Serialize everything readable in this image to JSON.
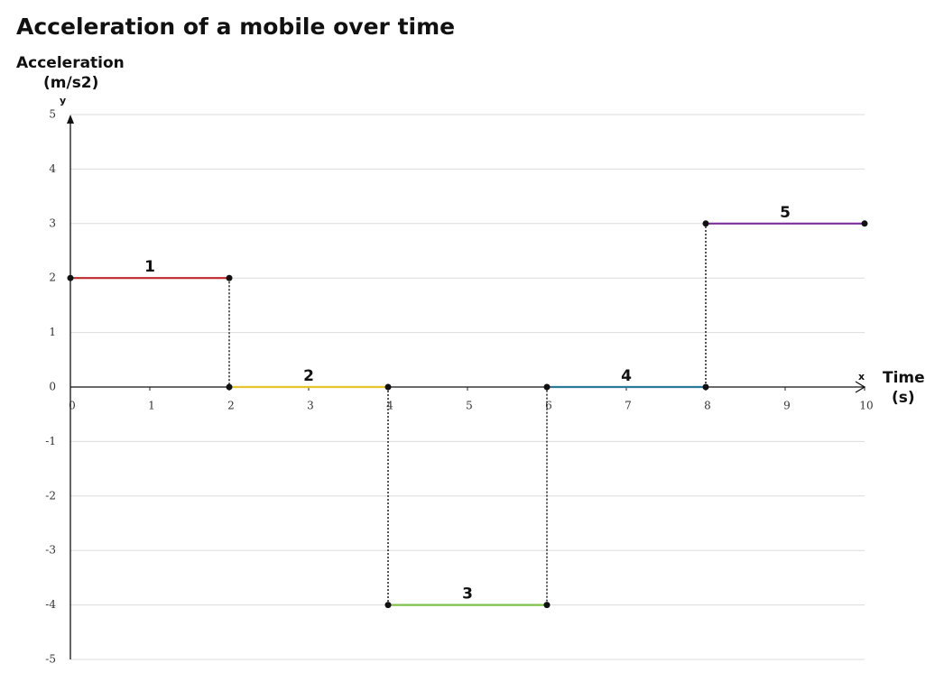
{
  "chart_data": {
    "type": "line",
    "title": "Acceleration of a mobile over time",
    "y_label": [
      "Acceleration",
      "(m/s2)"
    ],
    "x_label": [
      "Time",
      "(s)"
    ],
    "y_axis_letter": "y",
    "x_axis_letter": "x",
    "xlim": [
      0,
      10
    ],
    "ylim": [
      -5,
      5
    ],
    "xticks": [
      0,
      1,
      2,
      3,
      4,
      5,
      6,
      7,
      8,
      9,
      10
    ],
    "yticks": [
      -5,
      -4,
      -3,
      -2,
      -1,
      0,
      1,
      2,
      3,
      4,
      5
    ],
    "grid": true,
    "series": [
      {
        "name": "1",
        "color": "#c0282d",
        "x": [
          0,
          2
        ],
        "values": [
          2,
          2
        ]
      },
      {
        "name": "2",
        "color": "#e6c42c",
        "x": [
          2,
          4
        ],
        "values": [
          0,
          0
        ]
      },
      {
        "name": "3",
        "color": "#7ec24a",
        "x": [
          4,
          6
        ],
        "values": [
          -4,
          -4
        ]
      },
      {
        "name": "4",
        "color": "#2b7b98",
        "x": [
          6,
          8
        ],
        "values": [
          0,
          0
        ]
      },
      {
        "name": "5",
        "color": "#7a2f9a",
        "x": [
          8,
          10
        ],
        "values": [
          3,
          3
        ]
      }
    ]
  }
}
